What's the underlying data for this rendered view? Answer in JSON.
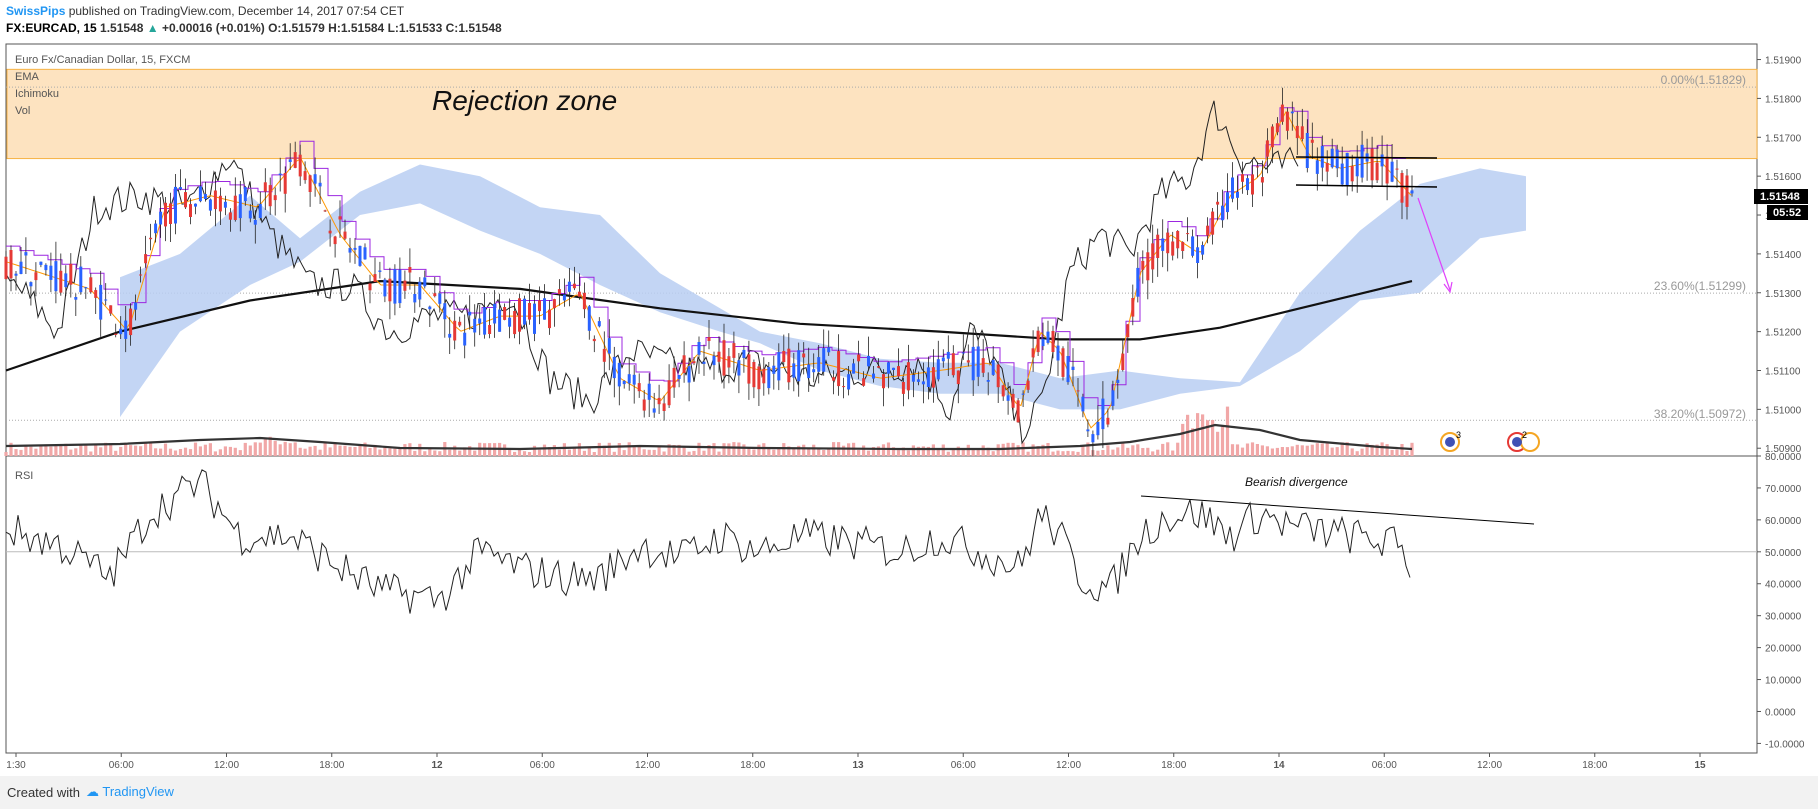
{
  "header": {
    "author": "SwissPips",
    "published": " published on TradingView.com, December 14, 2017 07:54 CET",
    "symbol": "FX:EURCAD, 15",
    "last": "1.51548",
    "arrow": "▲",
    "change": "+0.00016 (+0.01%)",
    "o_label": "O:",
    "o_value": "1.51579",
    "h_label": "H:",
    "h_value": "1.51584",
    "l_label": "L:",
    "l_value": "1.51533",
    "c_label": "C:",
    "c_value": "1.51548"
  },
  "legend": {
    "title": "Euro Fx/Canadian Dollar, 15, FXCM",
    "items": [
      "EMA",
      "Ichimoku",
      "Vol"
    ]
  },
  "annotations": {
    "rejection_zone": "Rejection zone",
    "bearish_divergence": "Bearish divergence",
    "event_badges": [
      "3",
      "2"
    ]
  },
  "fib_levels": [
    {
      "label": "0.00%(1.51829)",
      "price": 1.51829
    },
    {
      "label": "23.60%(1.51299)",
      "price": 1.51299
    },
    {
      "label": "38.20%(1.50972)",
      "price": 1.50972
    }
  ],
  "price_axis": {
    "ticks": [
      "1.51900",
      "1.51800",
      "1.51700",
      "1.51600",
      "1.51500",
      "1.51400",
      "1.51300",
      "1.51200",
      "1.51100",
      "1.51000",
      "1.50900"
    ],
    "current_price": "1.51548",
    "countdown": "05:52"
  },
  "rsi_panel": {
    "label": "RSI",
    "ticks": [
      "80.0000",
      "70.0000",
      "60.0000",
      "50.0000",
      "40.0000",
      "30.0000",
      "20.0000",
      "10.0000",
      "0.0000",
      "-10.0000"
    ]
  },
  "time_axis": {
    "ticks": [
      "1:30",
      "06:00",
      "12:00",
      "18:00",
      "12",
      "06:00",
      "12:00",
      "18:00",
      "13",
      "06:00",
      "12:00",
      "18:00",
      "14",
      "06:00",
      "12:00",
      "18:00",
      "15"
    ]
  },
  "colors": {
    "zone": "#fde3c0",
    "cloud": "#b9cef2",
    "bull": "#2962ff",
    "bear": "#e53935",
    "volume": "#f1a7a7",
    "conversion": "#9c27e0",
    "ema": "#ff9800",
    "arrow": "#e040fb"
  },
  "footer": {
    "created_with": "Created with",
    "brand": "TradingView"
  },
  "chart_data": {
    "type": "candlestick",
    "symbol": "EURCAD",
    "interval": "15",
    "price_range": [
      1.5088,
      1.5194
    ],
    "close_path": [
      {
        "t": "1:30",
        "p": 1.5138
      },
      {
        "t": "06:00",
        "p": 1.513
      },
      {
        "t": "09:00",
        "p": 1.5118
      },
      {
        "t": "12:00",
        "p": 1.5152
      },
      {
        "t": "15:00",
        "p": 1.5158
      },
      {
        "t": "18:00",
        "p": 1.5165
      },
      {
        "t": "21:00",
        "p": 1.514
      },
      {
        "t": "12",
        "p": 1.5132
      },
      {
        "t": "03:00",
        "p": 1.5126
      },
      {
        "t": "06:00",
        "p": 1.5124
      },
      {
        "t": "09:00",
        "p": 1.513
      },
      {
        "t": "12:00",
        "p": 1.5108
      },
      {
        "t": "15:00",
        "p": 1.5102
      },
      {
        "t": "18:00",
        "p": 1.511
      },
      {
        "t": "21:00",
        "p": 1.5112
      },
      {
        "t": "13",
        "p": 1.5108
      },
      {
        "t": "06:00",
        "p": 1.511
      },
      {
        "t": "09:00",
        "p": 1.5112
      },
      {
        "t": "12:00",
        "p": 1.511
      },
      {
        "t": "15:00",
        "p": 1.51
      },
      {
        "t": "18:00",
        "p": 1.5145
      },
      {
        "t": "21:00",
        "p": 1.5155
      },
      {
        "t": "14",
        "p": 1.5162
      },
      {
        "t": "03:00",
        "p": 1.5164
      },
      {
        "t": "06:00",
        "p": 1.516
      },
      {
        "t": "07:45",
        "p": 1.51548
      }
    ],
    "rsi_range": [
      -13,
      80
    ],
    "rsi_path": [
      {
        "t": "1:30",
        "v": 57
      },
      {
        "t": "06:00",
        "v": 42
      },
      {
        "t": "12:00",
        "v": 72
      },
      {
        "t": "18:00",
        "v": 55
      },
      {
        "t": "12",
        "v": 40
      },
      {
        "t": "06:00",
        "v": 38
      },
      {
        "t": "09:00",
        "v": 55
      },
      {
        "t": "12:00",
        "v": 40
      },
      {
        "t": "18:00",
        "v": 55
      },
      {
        "t": "13",
        "v": 52
      },
      {
        "t": "06:00",
        "v": 50
      },
      {
        "t": "12:00",
        "v": 38
      },
      {
        "t": "15:00",
        "v": 50
      },
      {
        "t": "18:00",
        "v": 65
      },
      {
        "t": "14",
        "v": 60
      },
      {
        "t": "06:00",
        "v": 55
      },
      {
        "t": "07:45",
        "v": 45
      }
    ]
  }
}
